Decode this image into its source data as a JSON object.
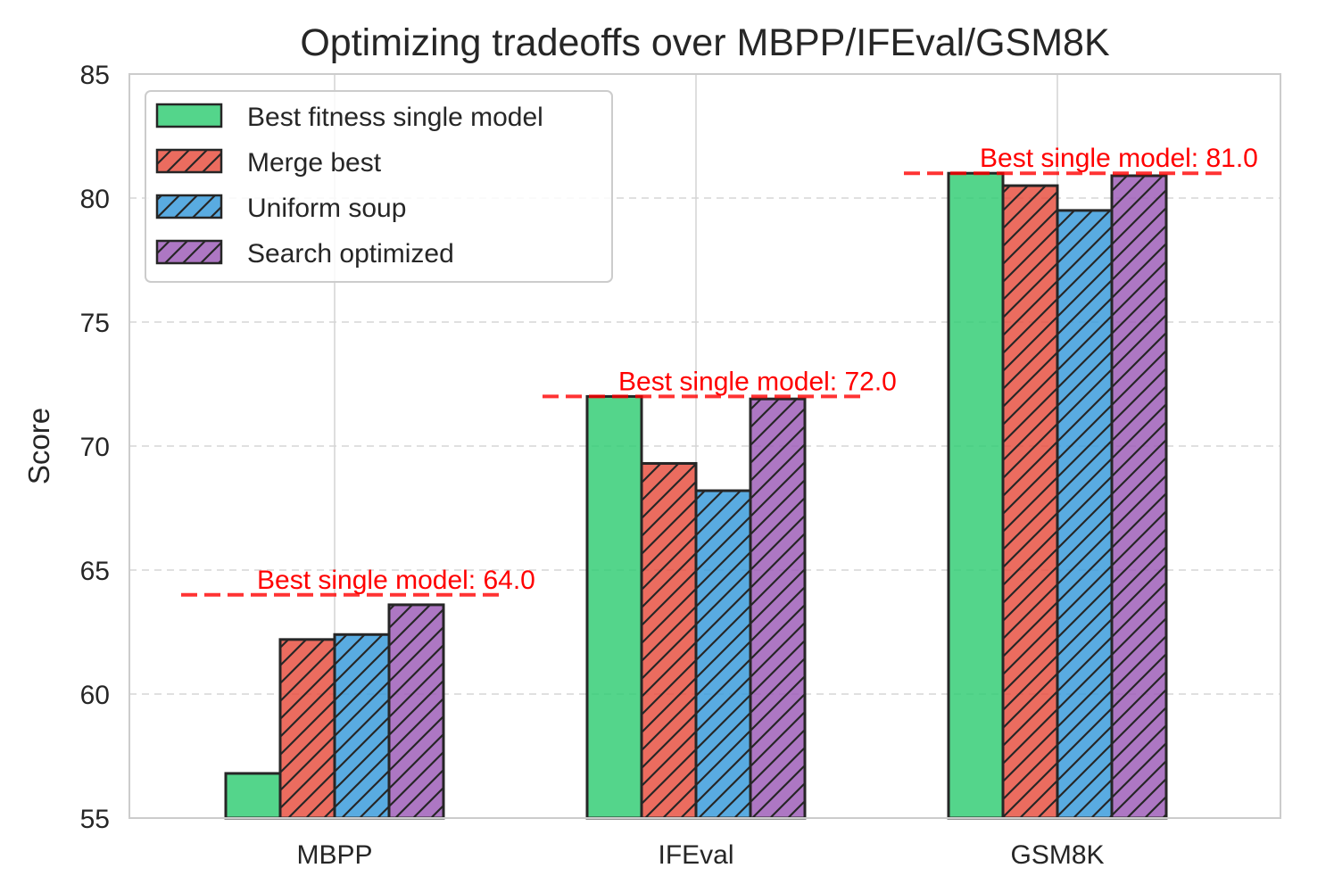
{
  "chart_data": {
    "type": "bar",
    "title": "Optimizing tradeoffs over MBPP/IFEval/GSM8K",
    "xlabel": "",
    "ylabel": "Score",
    "ylim": [
      55,
      85
    ],
    "yticks": [
      55,
      60,
      65,
      70,
      75,
      80,
      85
    ],
    "categories": [
      "MBPP",
      "IFEval",
      "GSM8K"
    ],
    "series": [
      {
        "name": "Best fitness single model",
        "values": [
          56.8,
          72.0,
          81.0
        ],
        "color": "#2ecc71",
        "hatch": false
      },
      {
        "name": "Merge best",
        "values": [
          62.2,
          69.3,
          80.5
        ],
        "color": "#e74c3c",
        "hatch": true
      },
      {
        "name": "Uniform soup",
        "values": [
          62.4,
          68.2,
          79.5
        ],
        "color": "#3498db",
        "hatch": true
      },
      {
        "name": "Search optimized",
        "values": [
          63.6,
          71.9,
          80.9
        ],
        "color": "#9b59b6",
        "hatch": true
      }
    ],
    "reference_lines": [
      {
        "category": "MBPP",
        "value": 64.0,
        "label": "Best single model: 64.0"
      },
      {
        "category": "IFEval",
        "value": 72.0,
        "label": "Best single model: 72.0"
      },
      {
        "category": "GSM8K",
        "value": 81.0,
        "label": "Best single model: 81.0"
      }
    ],
    "reference_color": "#ff0000",
    "grid": true,
    "legend_position": "top-left"
  }
}
